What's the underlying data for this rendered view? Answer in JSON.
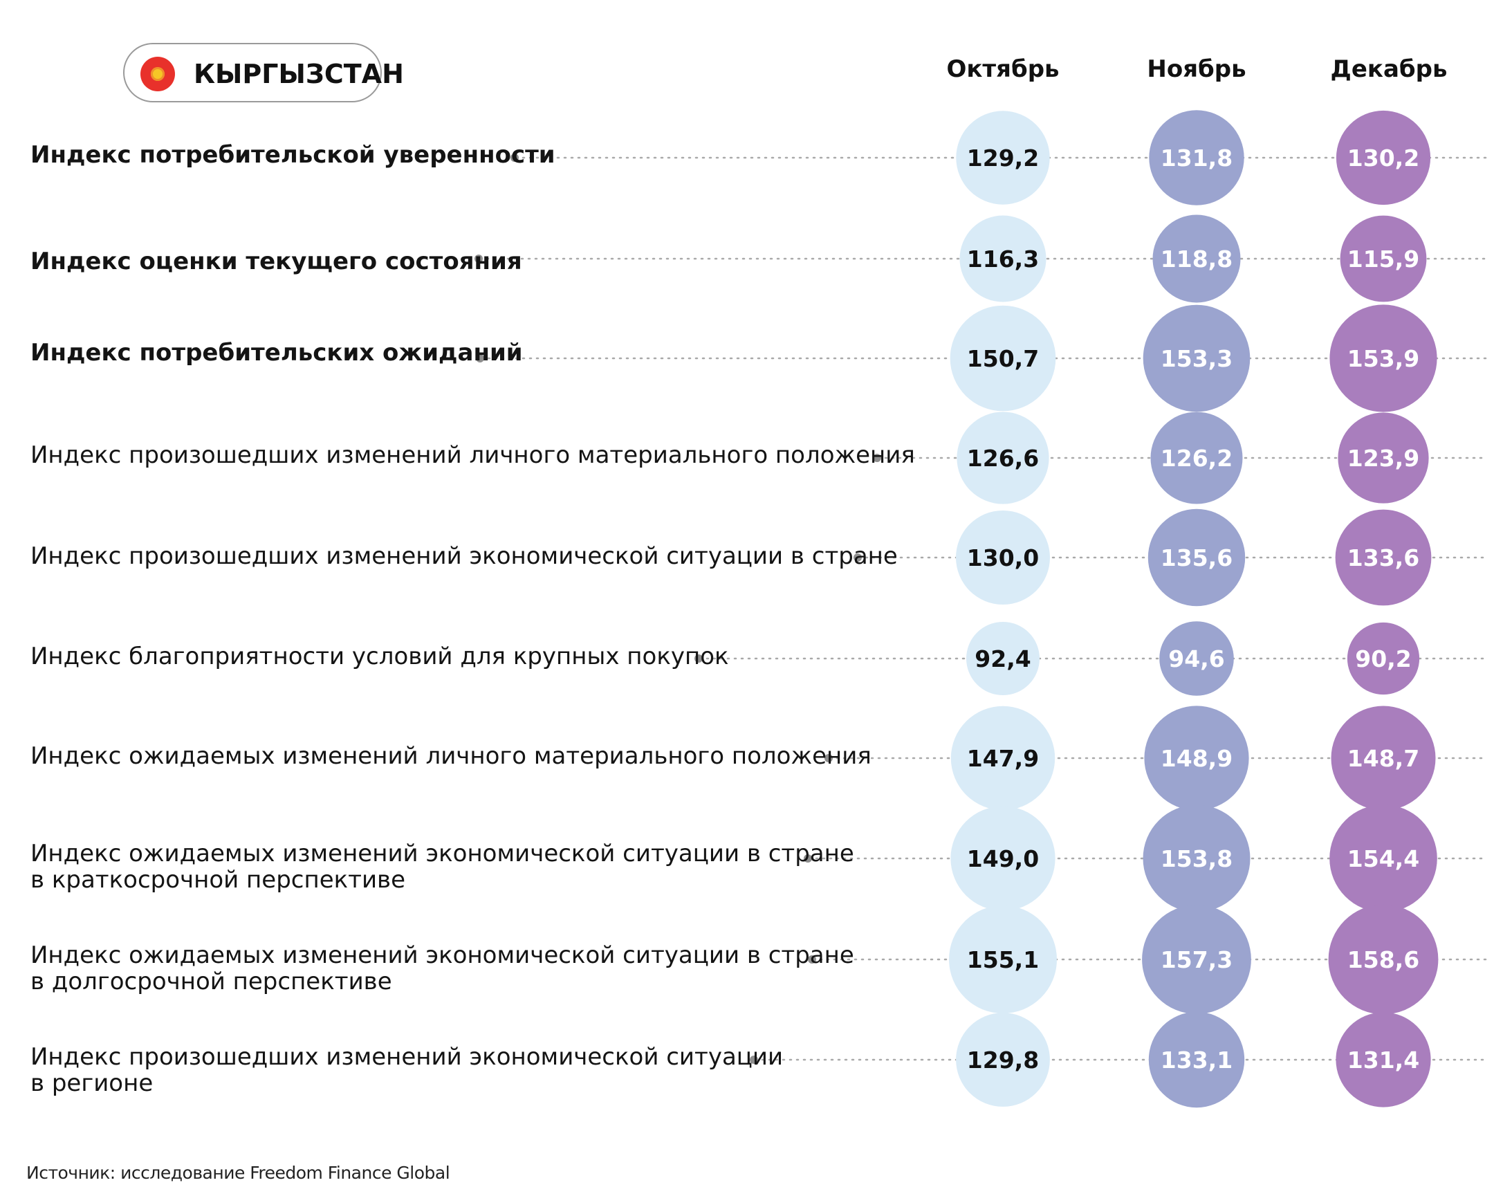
{
  "country": "КЫРГЫЗСТАН",
  "colors": {
    "october": "#d9ebf7",
    "november": "#9ba4cf",
    "december": "#a97ebd",
    "leader": "#a9a9a9",
    "dot": "#8e8e8e",
    "october_text": "#111111",
    "light_text": "#ffffff"
  },
  "chart_data": {
    "type": "table",
    "columns": [
      "Октябрь",
      "Ноябрь",
      "Декабрь"
    ],
    "rows": [
      {
        "label": [
          "Индекс потребительской уверенности"
        ],
        "bold": true,
        "values": [
          129.2,
          131.8,
          130.2
        ],
        "display": [
          "129,2",
          "131,8",
          "130,2"
        ]
      },
      {
        "label": [
          "Индекс оценки текущего состояния"
        ],
        "bold": true,
        "values": [
          116.3,
          118.8,
          115.9
        ],
        "display": [
          "116,3",
          "118,8",
          "115,9"
        ]
      },
      {
        "label": [
          "Индекс потребительских ожиданий"
        ],
        "bold": true,
        "values": [
          150.7,
          153.3,
          153.9
        ],
        "display": [
          "150,7",
          "153,3",
          "153,9"
        ]
      },
      {
        "label": [
          "Индекс произошедших изменений личного материального положения"
        ],
        "bold": false,
        "values": [
          126.6,
          126.2,
          123.9
        ],
        "display": [
          "126,6",
          "126,2",
          "123,9"
        ]
      },
      {
        "label": [
          "Индекс произошедших изменений экономической ситуации в стране"
        ],
        "bold": false,
        "values": [
          130.0,
          135.6,
          133.6
        ],
        "display": [
          "130,0",
          "135,6",
          "133,6"
        ]
      },
      {
        "label": [
          "Индекс благоприятности условий для крупных покупок"
        ],
        "bold": false,
        "values": [
          92.4,
          94.6,
          90.2
        ],
        "display": [
          "92,4",
          "94,6",
          "90,2"
        ]
      },
      {
        "label": [
          "Индекс ожидаемых изменений личного материального положения"
        ],
        "bold": false,
        "values": [
          147.9,
          148.9,
          148.7
        ],
        "display": [
          "147,9",
          "148,9",
          "148,7"
        ]
      },
      {
        "label": [
          "Индекс ожидаемых изменений экономической ситуации в стране",
          "в краткосрочной перспективе"
        ],
        "bold": false,
        "values": [
          149.0,
          153.8,
          154.4
        ],
        "display": [
          "149,0",
          "153,8",
          "154,4"
        ]
      },
      {
        "label": [
          "Индекс ожидаемых изменений экономической ситуации в стране",
          "в долгосрочной перспективе"
        ],
        "bold": false,
        "values": [
          155.1,
          157.3,
          158.6
        ],
        "display": [
          "155,1",
          "157,3",
          "158,6"
        ]
      },
      {
        "label": [
          "Индекс произошедших изменений экономической ситуации",
          "в регионе"
        ],
        "bold": false,
        "values": [
          129.8,
          133.1,
          131.4
        ],
        "display": [
          "129,8",
          "133,1",
          "131,4"
        ]
      }
    ]
  },
  "source": "Источник: исследование Freedom Finance Global"
}
